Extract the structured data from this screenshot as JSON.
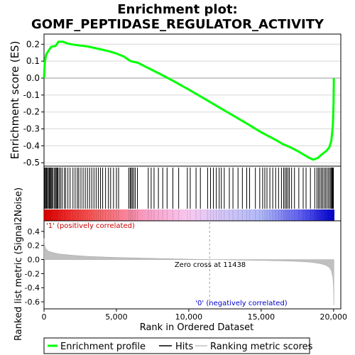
{
  "title_line1": "Enrichment plot:",
  "title_line2": "GOMF_PEPTIDASE_REGULATOR_ACTIVITY",
  "chart_data": [
    {
      "type": "line",
      "panel": "enrichment",
      "ylabel": "Enrichment score (ES)",
      "ylim": [
        -0.52,
        0.26
      ],
      "xlim": [
        0,
        20500
      ],
      "y_ticks": [
        0.2,
        0.1,
        0.0,
        -0.1,
        -0.2,
        -0.3,
        -0.4,
        -0.5
      ],
      "y_tick_labels": [
        "0.2",
        "0.1",
        "0.0",
        "-0.1",
        "-0.2",
        "-0.3",
        "-0.4",
        "-0.5"
      ],
      "grid": true,
      "color": "#00ff00",
      "series": [
        {
          "name": "Enrichment profile",
          "x": [
            0,
            50,
            150,
            300,
            500,
            800,
            1000,
            1300,
            1600,
            2000,
            2500,
            3000,
            3500,
            4000,
            4500,
            5000,
            5500,
            6000,
            6500,
            7000,
            8000,
            9000,
            10000,
            11000,
            12000,
            13000,
            14000,
            15000,
            16000,
            16500,
            17000,
            17500,
            18000,
            18300,
            18600,
            18900,
            19200,
            19500,
            19700,
            19850,
            19950,
            20000,
            20020
          ],
          "y": [
            0.0,
            0.09,
            0.14,
            0.16,
            0.185,
            0.19,
            0.215,
            0.215,
            0.205,
            0.198,
            0.192,
            0.187,
            0.178,
            0.168,
            0.158,
            0.145,
            0.128,
            0.1,
            0.09,
            0.068,
            0.025,
            -0.02,
            -0.068,
            -0.118,
            -0.168,
            -0.218,
            -0.268,
            -0.32,
            -0.365,
            -0.39,
            -0.408,
            -0.43,
            -0.455,
            -0.47,
            -0.482,
            -0.472,
            -0.45,
            -0.43,
            -0.41,
            -0.37,
            -0.28,
            -0.15,
            0.0
          ]
        }
      ]
    },
    {
      "type": "scatter",
      "panel": "hits",
      "series": [
        {
          "name": "Hits",
          "x": [
            20,
            60,
            110,
            170,
            230,
            300,
            360,
            420,
            480,
            540,
            600,
            700,
            780,
            840,
            900,
            960,
            1050,
            1150,
            1250,
            1400,
            1500,
            1650,
            1800,
            2000,
            2150,
            2300,
            2400,
            2550,
            2700,
            2850,
            3000,
            3150,
            3300,
            3450,
            3600,
            3750,
            3900,
            4050,
            4250,
            4450,
            4600,
            4800,
            5000,
            5150,
            5850,
            5950,
            6020,
            6100,
            6200,
            6300,
            6450,
            7200,
            7400,
            7600,
            7900,
            8200,
            8500,
            8900,
            9300,
            9900,
            10100,
            10500,
            10800,
            11300,
            11500,
            11700,
            11900,
            12100,
            12250,
            12450,
            12800,
            13050,
            13400,
            13700,
            14000,
            14200,
            14600,
            14900,
            15100,
            15250,
            15400,
            15600,
            15800,
            16000,
            16200,
            16400,
            16550,
            16650,
            16750,
            16850,
            16950,
            17100,
            17300,
            17600,
            17900,
            18100,
            18400,
            18700,
            18850,
            18950,
            19050,
            19150,
            19250,
            19350,
            19450,
            19550,
            19650,
            19750,
            19820,
            19880,
            19920,
            19960,
            19990
          ]
        }
      ]
    },
    {
      "type": "area",
      "panel": "ranked-metric",
      "ylabel": "Ranked list metric (Signal2Noise)",
      "xlabel": "Rank in Ordered Dataset",
      "xlim": [
        0,
        20500
      ],
      "ylim": [
        -0.7,
        0.55
      ],
      "x_ticks": [
        0,
        5000,
        10000,
        15000,
        20000
      ],
      "x_tick_labels": [
        "0",
        "5,000",
        "10,000",
        "15,000",
        "20,000"
      ],
      "y_ticks": [
        0.4,
        0.2,
        0.0,
        -0.2,
        -0.4,
        -0.6
      ],
      "y_tick_labels": [
        "0.4",
        "0.2",
        "0.0",
        "-0.2",
        "-0.4",
        "-0.6"
      ],
      "color": "#c0c0c0",
      "series": [
        {
          "name": "Ranking metric scores",
          "x": [
            0,
            30,
            100,
            300,
            600,
            1000,
            2000,
            3000,
            5000,
            7000,
            9000,
            11438,
            13000,
            15000,
            17000,
            18000,
            18500,
            19000,
            19400,
            19700,
            19850,
            19950,
            20000,
            20020
          ],
          "y": [
            0.3,
            0.22,
            0.16,
            0.12,
            0.1,
            0.08,
            0.06,
            0.045,
            0.03,
            0.02,
            0.01,
            0.0,
            -0.005,
            -0.012,
            -0.022,
            -0.032,
            -0.04,
            -0.055,
            -0.075,
            -0.11,
            -0.16,
            -0.25,
            -0.4,
            -0.65
          ]
        }
      ],
      "annotations": [
        "Zero cross at 11438",
        "'1' (positively correlated)",
        "'0' (negatively correlated)"
      ]
    }
  ],
  "annotations": {
    "zero_cross": "Zero cross at 11438",
    "pos_label": "'1' (positively correlated)",
    "neg_label": "'0' (negatively correlated)"
  },
  "legend": {
    "enrichment": "Enrichment profile",
    "hits": "Hits",
    "ranking": "Ranking metric scores"
  },
  "colors": {
    "es_line": "#00ff00",
    "hits": "#000000",
    "metric_fill": "#c0c0c0",
    "pos_label": "#cc0000",
    "neg_label": "#0000cc",
    "heat_pos": "#ff0000",
    "heat_neg": "#0000ff"
  }
}
